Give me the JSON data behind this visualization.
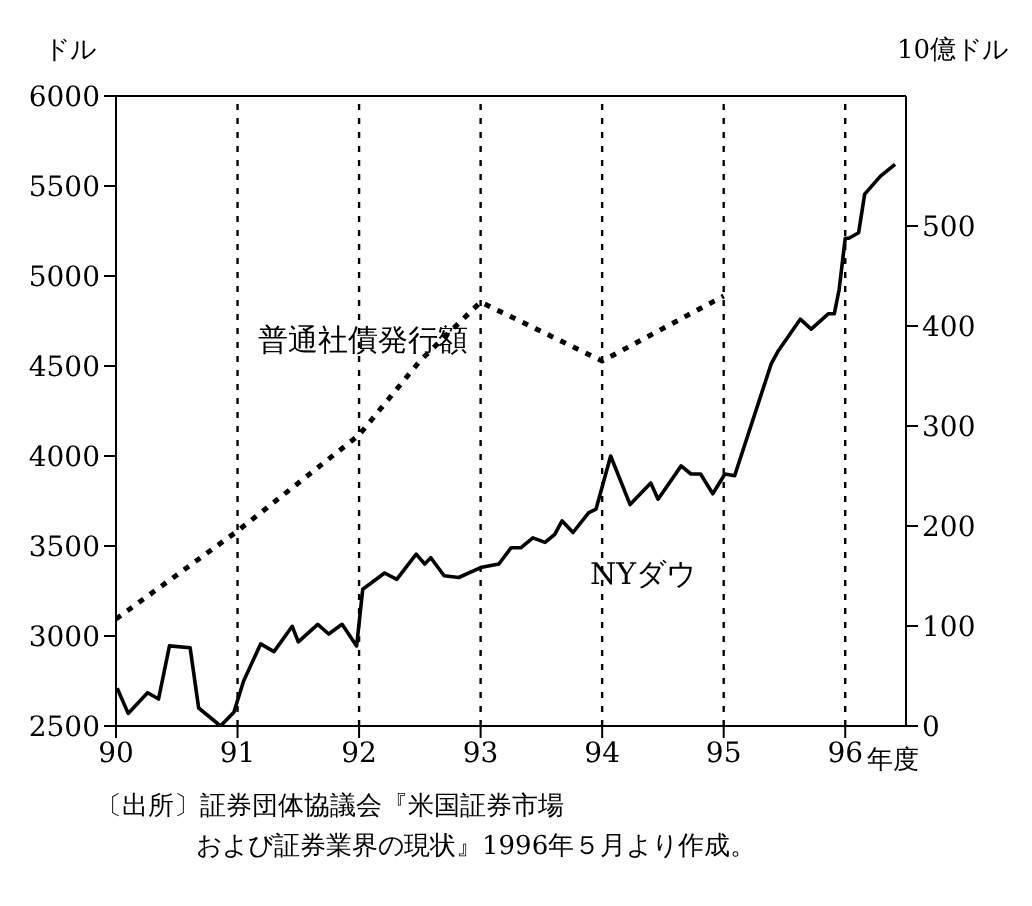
{
  "chart_data": {
    "type": "line",
    "ylabel": "ドル",
    "y2label": "10億ドル",
    "xlabel": "年度",
    "xlim": [
      90,
      96.5
    ],
    "xticks": [
      90,
      91,
      92,
      93,
      94,
      95,
      96
    ],
    "ylim": [
      2500,
      6000
    ],
    "yticks": [
      2500,
      3000,
      3500,
      4000,
      4500,
      5000,
      5500,
      6000
    ],
    "y2lim": [
      0,
      630
    ],
    "y2ticks": [
      0,
      100,
      200,
      300,
      400,
      500
    ],
    "series": [
      {
        "name": "普通社債発行額",
        "color": "#000000",
        "axis": "y2",
        "line_style": "dotted",
        "x": [
          90,
          91,
          92,
          92.5,
          93,
          94,
          95
        ],
        "values": [
          107,
          195,
          291,
          365,
          424,
          365,
          430
        ]
      },
      {
        "name": "NYダウ",
        "color": "#000000",
        "line_style": "solid",
        "x": [
          90.01,
          90.1,
          90.26,
          90.35,
          90.44,
          90.61,
          90.68,
          90.86,
          90.97,
          91.05,
          91.19,
          91.3,
          91.45,
          91.5,
          91.66,
          91.75,
          91.86,
          91.98,
          92.03,
          92.21,
          92.31,
          92.47,
          92.54,
          92.59,
          92.7,
          92.82,
          93.0,
          93.15,
          93.25,
          93.33,
          93.43,
          93.53,
          93.61,
          93.67,
          93.76,
          93.89,
          93.95,
          94.07,
          94.23,
          94.4,
          94.46,
          94.65,
          94.73,
          94.81,
          94.91,
          95.01,
          95.09,
          95.39,
          95.45,
          95.63,
          95.72,
          95.86,
          95.91,
          95.95,
          96.0,
          96.03,
          96.11,
          96.16,
          96.29,
          96.41
        ],
        "values": [
          2710,
          2570,
          2685,
          2650,
          2945,
          2935,
          2600,
          2500,
          2576,
          2750,
          2956,
          2913,
          3054,
          2967,
          3065,
          3011,
          3065,
          2945,
          3260,
          3350,
          3315,
          3455,
          3400,
          3435,
          3335,
          3325,
          3380,
          3400,
          3490,
          3490,
          3545,
          3520,
          3565,
          3640,
          3575,
          3685,
          3705,
          4000,
          3730,
          3850,
          3760,
          3945,
          3900,
          3900,
          3790,
          3900,
          3890,
          4510,
          4585,
          4760,
          4705,
          4790,
          4790,
          4925,
          5210,
          5210,
          5240,
          5455,
          5555,
          5620
        ]
      }
    ],
    "ref_lines": [
      {
        "axis": "x",
        "value": 91,
        "line_style": "dotted"
      },
      {
        "axis": "x",
        "value": 92,
        "line_style": "dotted"
      },
      {
        "axis": "x",
        "value": 93,
        "line_style": "dotted"
      },
      {
        "axis": "x",
        "value": 94,
        "line_style": "dotted"
      },
      {
        "axis": "x",
        "value": 95,
        "line_style": "dotted"
      },
      {
        "axis": "x",
        "value": 96,
        "line_style": "dotted"
      }
    ],
    "grid": false,
    "legend": false,
    "marker": "none",
    "annotations": [
      "〔出所〕証券団体協議会『米国証券市場",
      "および証券業界の現状』1996年５月より作成。"
    ]
  }
}
